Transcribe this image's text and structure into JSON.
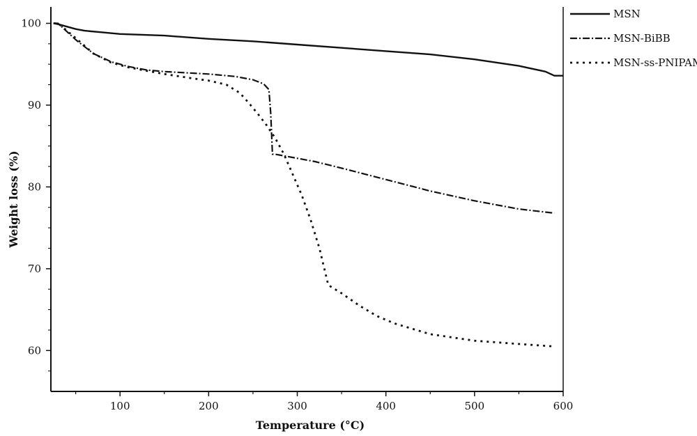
{
  "chart_data": {
    "type": "line",
    "title": "",
    "xlabel": "Temperature (°C)",
    "ylabel": "Weight loss (%)",
    "xlim": [
      22,
      600
    ],
    "ylim": [
      55,
      102
    ],
    "xticks": [
      100,
      200,
      300,
      400,
      500,
      600
    ],
    "yticks": [
      60,
      70,
      80,
      90,
      100
    ],
    "grid": false,
    "legend_position": "right",
    "series": [
      {
        "name": "MSN",
        "style": "solid",
        "color": "#111111",
        "x": [
          25,
          30,
          40,
          50,
          60,
          80,
          100,
          150,
          200,
          250,
          300,
          350,
          400,
          450,
          500,
          550,
          580,
          590,
          600
        ],
        "y": [
          100.0,
          99.9,
          99.6,
          99.3,
          99.1,
          98.9,
          98.7,
          98.5,
          98.1,
          97.8,
          97.4,
          97.0,
          96.6,
          96.2,
          95.6,
          94.8,
          94.1,
          93.6,
          93.6
        ]
      },
      {
        "name": "MSN-BiBB",
        "style": "dashdot",
        "color": "#111111",
        "x": [
          25,
          30,
          50,
          70,
          90,
          110,
          130,
          150,
          200,
          230,
          250,
          262,
          268,
          270,
          272,
          275,
          300,
          320,
          350,
          400,
          450,
          500,
          550,
          590
        ],
        "y": [
          100.0,
          100.0,
          98.0,
          96.3,
          95.3,
          94.7,
          94.3,
          94.1,
          93.8,
          93.5,
          93.1,
          92.6,
          91.9,
          89.0,
          84.0,
          84.0,
          83.5,
          83.1,
          82.3,
          80.9,
          79.5,
          78.3,
          77.3,
          76.8
        ]
      },
      {
        "name": "MSN-ss-PNIPAM",
        "style": "dotted",
        "color": "#111111",
        "x": [
          25,
          30,
          50,
          70,
          90,
          110,
          130,
          150,
          180,
          200,
          220,
          235,
          245,
          255,
          265,
          275,
          285,
          295,
          305,
          315,
          325,
          335,
          350,
          370,
          390,
          410,
          450,
          500,
          550,
          590
        ],
        "y": [
          100.0,
          100.0,
          98.2,
          96.3,
          95.2,
          94.6,
          94.2,
          93.8,
          93.3,
          93.0,
          92.5,
          91.5,
          90.3,
          89.0,
          87.6,
          86.0,
          84.0,
          81.5,
          79.0,
          76.0,
          72.5,
          68.0,
          67.0,
          65.5,
          64.2,
          63.3,
          62.0,
          61.2,
          60.8,
          60.5
        ]
      }
    ]
  }
}
